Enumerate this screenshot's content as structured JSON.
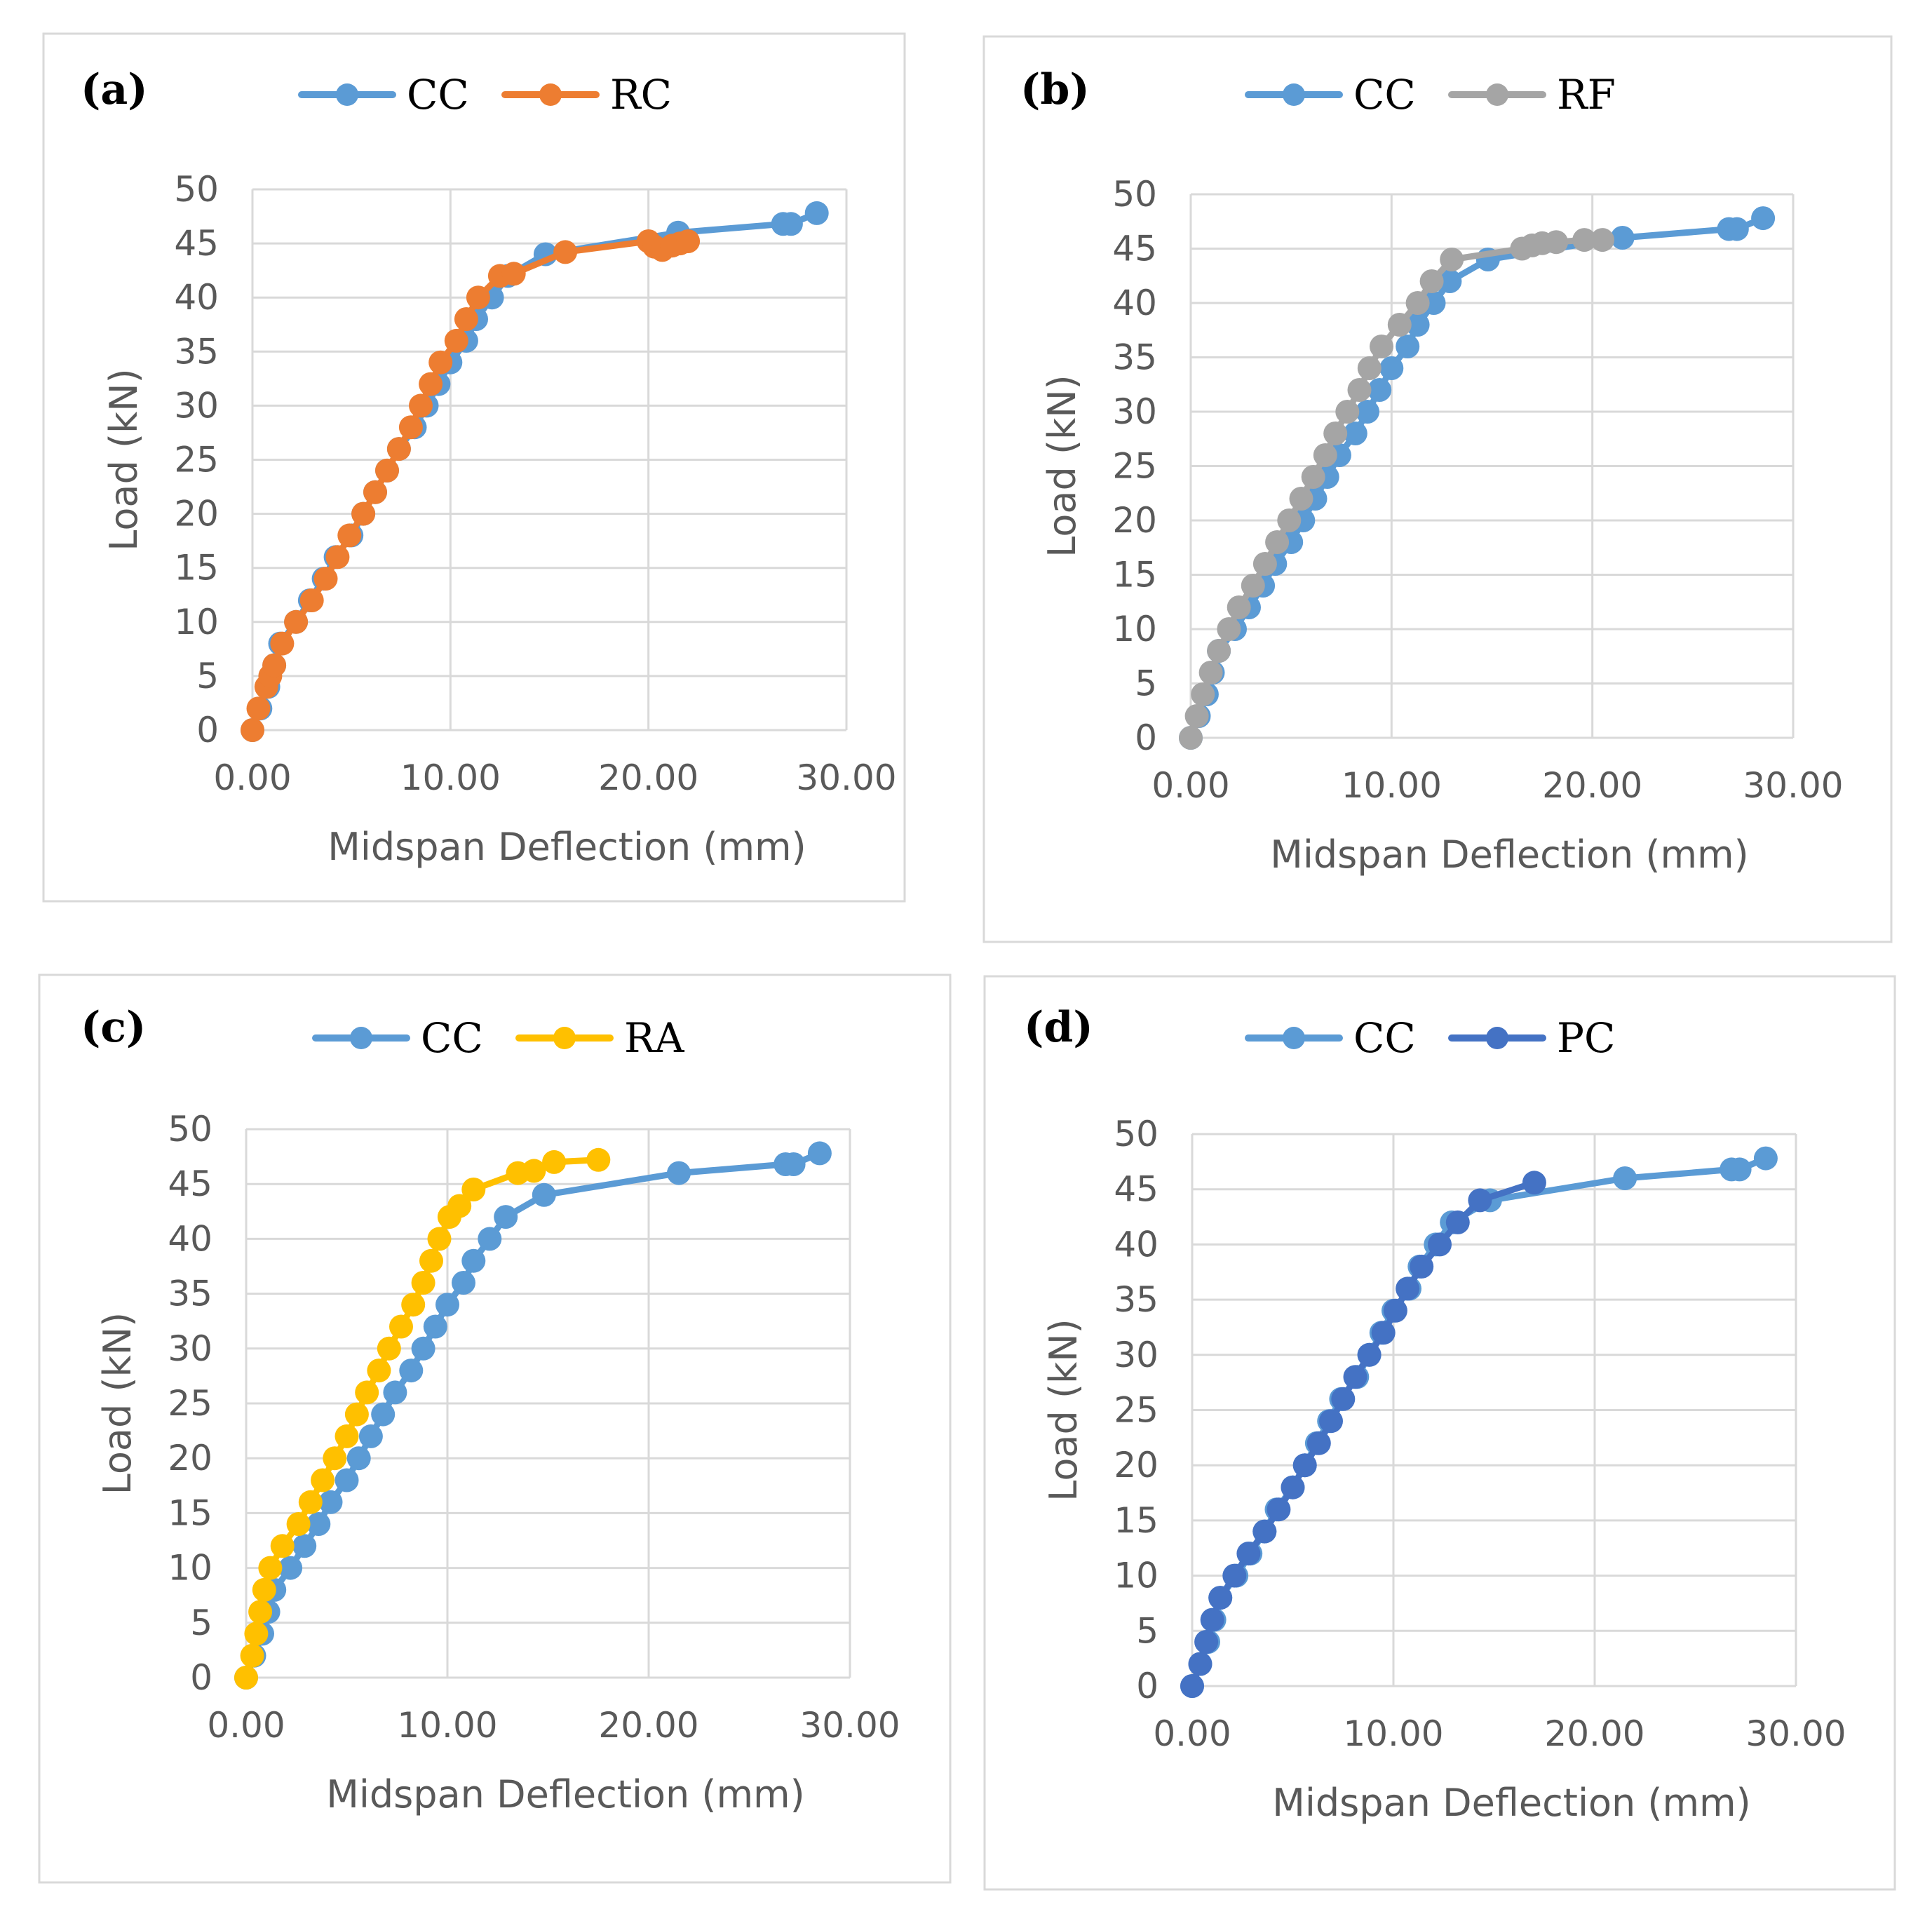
{
  "colors": {
    "CC": "#5b9bd5",
    "RC": "#ed7d31",
    "RF": "#a5a5a5",
    "RA": "#ffc000",
    "PC": "#4472c4",
    "grid": "#d9d9d9",
    "axis_text": "#595959",
    "frame": "#d9d9d9"
  },
  "chart_data": [
    {
      "type": "line",
      "panel_label": "(a)",
      "xlabel": "Midspan Deflection (mm)",
      "ylabel": "Load (kN)",
      "xlim": [
        0,
        30
      ],
      "ylim": [
        0,
        50
      ],
      "xticks": [
        "0.00",
        "10.00",
        "20.00",
        "30.00"
      ],
      "yticks": [
        "0",
        "5",
        "10",
        "15",
        "20",
        "25",
        "30",
        "35",
        "40",
        "45",
        "50"
      ],
      "grid": true,
      "legend": "top",
      "series": [
        {
          "name": "CC",
          "color_key": "CC",
          "points": [
            [
              0,
              0
            ],
            [
              0.4,
              2
            ],
            [
              0.8,
              4
            ],
            [
              1.1,
              6
            ],
            [
              1.4,
              8
            ],
            [
              2.2,
              10
            ],
            [
              2.9,
              12
            ],
            [
              3.6,
              14
            ],
            [
              4.2,
              16
            ],
            [
              5.0,
              18
            ],
            [
              5.6,
              20
            ],
            [
              6.2,
              22
            ],
            [
              6.8,
              24
            ],
            [
              7.4,
              26
            ],
            [
              8.2,
              28
            ],
            [
              8.8,
              30
            ],
            [
              9.4,
              32
            ],
            [
              10.0,
              34
            ],
            [
              10.8,
              36
            ],
            [
              11.3,
              38
            ],
            [
              12.1,
              40
            ],
            [
              12.9,
              42
            ],
            [
              14.8,
              44
            ],
            [
              21.5,
              46
            ],
            [
              26.8,
              46.8
            ],
            [
              27.2,
              46.8
            ],
            [
              28.5,
              47.8
            ]
          ]
        },
        {
          "name": "RC",
          "color_key": "RC",
          "points": [
            [
              0,
              0
            ],
            [
              0.3,
              2
            ],
            [
              0.7,
              4
            ],
            [
              0.9,
              5
            ],
            [
              1.1,
              6
            ],
            [
              1.5,
              8
            ],
            [
              2.2,
              10
            ],
            [
              3.0,
              12
            ],
            [
              3.7,
              14
            ],
            [
              4.3,
              16
            ],
            [
              4.9,
              18
            ],
            [
              5.6,
              20
            ],
            [
              6.2,
              22
            ],
            [
              6.8,
              24
            ],
            [
              7.4,
              26
            ],
            [
              8.0,
              28
            ],
            [
              8.5,
              30
            ],
            [
              9.0,
              32
            ],
            [
              9.5,
              34
            ],
            [
              10.3,
              36
            ],
            [
              10.8,
              38
            ],
            [
              11.4,
              40
            ],
            [
              12.5,
              42
            ],
            [
              13.2,
              42.2
            ],
            [
              15.8,
              44.2
            ],
            [
              20.0,
              45.2
            ],
            [
              20.3,
              44.7
            ],
            [
              20.7,
              44.4
            ],
            [
              21.2,
              44.8
            ],
            [
              21.6,
              45.0
            ],
            [
              22.0,
              45.2
            ]
          ]
        }
      ]
    },
    {
      "type": "line",
      "panel_label": "(b)",
      "xlabel": "Midspan Deflection (mm)",
      "ylabel": "Load (kN)",
      "xlim": [
        0,
        30
      ],
      "ylim": [
        0,
        50
      ],
      "xticks": [
        "0.00",
        "10.00",
        "20.00",
        "30.00"
      ],
      "yticks": [
        "0",
        "5",
        "10",
        "15",
        "20",
        "25",
        "30",
        "35",
        "40",
        "45",
        "50"
      ],
      "grid": true,
      "legend": "top",
      "series": [
        {
          "name": "CC",
          "color_key": "CC",
          "points": [
            [
              0,
              0
            ],
            [
              0.4,
              2
            ],
            [
              0.8,
              4
            ],
            [
              1.1,
              6
            ],
            [
              1.4,
              8
            ],
            [
              2.2,
              10
            ],
            [
              2.9,
              12
            ],
            [
              3.6,
              14
            ],
            [
              4.2,
              16
            ],
            [
              5.0,
              18
            ],
            [
              5.6,
              20
            ],
            [
              6.2,
              22
            ],
            [
              6.8,
              24
            ],
            [
              7.4,
              26
            ],
            [
              8.2,
              28
            ],
            [
              8.8,
              30
            ],
            [
              9.4,
              32
            ],
            [
              10.0,
              34
            ],
            [
              10.8,
              36
            ],
            [
              11.3,
              38
            ],
            [
              12.1,
              40
            ],
            [
              12.9,
              42
            ],
            [
              14.8,
              44
            ],
            [
              21.5,
              46
            ],
            [
              26.8,
              46.8
            ],
            [
              27.2,
              46.8
            ],
            [
              28.5,
              47.8
            ]
          ]
        },
        {
          "name": "RF",
          "color_key": "RF",
          "points": [
            [
              0,
              0
            ],
            [
              0.3,
              2
            ],
            [
              0.6,
              4
            ],
            [
              1.0,
              6
            ],
            [
              1.4,
              8
            ],
            [
              1.9,
              10
            ],
            [
              2.4,
              12
            ],
            [
              3.1,
              14
            ],
            [
              3.7,
              16
            ],
            [
              4.3,
              18
            ],
            [
              4.9,
              20
            ],
            [
              5.5,
              22
            ],
            [
              6.1,
              24
            ],
            [
              6.7,
              26
            ],
            [
              7.2,
              28
            ],
            [
              7.8,
              30
            ],
            [
              8.4,
              32
            ],
            [
              8.9,
              34
            ],
            [
              9.5,
              36
            ],
            [
              10.4,
              38
            ],
            [
              11.3,
              40
            ],
            [
              12.0,
              42
            ],
            [
              13.0,
              44
            ],
            [
              16.5,
              45
            ],
            [
              17.0,
              45.3
            ],
            [
              17.5,
              45.5
            ],
            [
              18.2,
              45.6
            ],
            [
              19.6,
              45.8
            ],
            [
              20.5,
              45.8
            ]
          ]
        }
      ]
    },
    {
      "type": "line",
      "panel_label": "(c)",
      "xlabel": "Midspan Deflection (mm)",
      "ylabel": "Load (kN)",
      "xlim": [
        0,
        30
      ],
      "ylim": [
        0,
        50
      ],
      "xticks": [
        "0.00",
        "10.00",
        "20.00",
        "30.00"
      ],
      "yticks": [
        "0",
        "5",
        "10",
        "15",
        "20",
        "25",
        "30",
        "35",
        "40",
        "45",
        "50"
      ],
      "grid": true,
      "legend": "top",
      "series": [
        {
          "name": "CC",
          "color_key": "CC",
          "points": [
            [
              0,
              0
            ],
            [
              0.4,
              2
            ],
            [
              0.8,
              4
            ],
            [
              1.1,
              6
            ],
            [
              1.4,
              8
            ],
            [
              2.2,
              10
            ],
            [
              2.9,
              12
            ],
            [
              3.6,
              14
            ],
            [
              4.2,
              16
            ],
            [
              5.0,
              18
            ],
            [
              5.6,
              20
            ],
            [
              6.2,
              22
            ],
            [
              6.8,
              24
            ],
            [
              7.4,
              26
            ],
            [
              8.2,
              28
            ],
            [
              8.8,
              30
            ],
            [
              9.4,
              32
            ],
            [
              10.0,
              34
            ],
            [
              10.8,
              36
            ],
            [
              11.3,
              38
            ],
            [
              12.1,
              40
            ],
            [
              12.9,
              42
            ],
            [
              14.8,
              44
            ],
            [
              21.5,
              46
            ],
            [
              26.8,
              46.8
            ],
            [
              27.2,
              46.8
            ],
            [
              28.5,
              47.8
            ]
          ]
        },
        {
          "name": "RA",
          "color_key": "RA",
          "points": [
            [
              0,
              0
            ],
            [
              0.3,
              2
            ],
            [
              0.5,
              4
            ],
            [
              0.7,
              6
            ],
            [
              0.9,
              8
            ],
            [
              1.2,
              10
            ],
            [
              1.8,
              12
            ],
            [
              2.6,
              14
            ],
            [
              3.2,
              16
            ],
            [
              3.8,
              18
            ],
            [
              4.4,
              20
            ],
            [
              5.0,
              22
            ],
            [
              5.5,
              24
            ],
            [
              6.0,
              26
            ],
            [
              6.6,
              28
            ],
            [
              7.1,
              30
            ],
            [
              7.7,
              32
            ],
            [
              8.3,
              34
            ],
            [
              8.8,
              36
            ],
            [
              9.2,
              38
            ],
            [
              9.6,
              40
            ],
            [
              10.1,
              42
            ],
            [
              10.6,
              43
            ],
            [
              11.3,
              44.5
            ],
            [
              13.5,
              46
            ],
            [
              14.3,
              46.2
            ],
            [
              15.3,
              47.0
            ],
            [
              17.5,
              47.2
            ]
          ]
        }
      ]
    },
    {
      "type": "line",
      "panel_label": "(d)",
      "xlabel": "Midspan Deflection (mm)",
      "ylabel": "Load (kN)",
      "xlim": [
        0,
        30
      ],
      "ylim": [
        0,
        50
      ],
      "xticks": [
        "0.00",
        "10.00",
        "20.00",
        "30.00"
      ],
      "yticks": [
        "0",
        "5",
        "10",
        "15",
        "20",
        "25",
        "30",
        "35",
        "40",
        "45",
        "50"
      ],
      "grid": true,
      "legend": "top",
      "series": [
        {
          "name": "CC",
          "color_key": "CC",
          "points": [
            [
              0,
              0
            ],
            [
              0.4,
              2
            ],
            [
              0.8,
              4
            ],
            [
              1.1,
              6
            ],
            [
              1.4,
              8
            ],
            [
              2.2,
              10
            ],
            [
              2.9,
              12
            ],
            [
              3.6,
              14
            ],
            [
              4.2,
              16
            ],
            [
              5.0,
              18
            ],
            [
              5.6,
              20
            ],
            [
              6.2,
              22
            ],
            [
              6.8,
              24
            ],
            [
              7.4,
              26
            ],
            [
              8.2,
              28
            ],
            [
              8.8,
              30
            ],
            [
              9.4,
              32
            ],
            [
              10.0,
              34
            ],
            [
              10.8,
              36
            ],
            [
              11.3,
              38
            ],
            [
              12.1,
              40
            ],
            [
              12.9,
              42
            ],
            [
              14.8,
              44
            ],
            [
              21.5,
              46
            ],
            [
              26.8,
              46.8
            ],
            [
              27.2,
              46.8
            ],
            [
              28.5,
              47.8
            ]
          ]
        },
        {
          "name": "PC",
          "color_key": "PC",
          "points": [
            [
              0,
              0
            ],
            [
              0.4,
              2
            ],
            [
              0.7,
              4
            ],
            [
              1.0,
              6
            ],
            [
              1.4,
              8
            ],
            [
              2.1,
              10
            ],
            [
              2.8,
              12
            ],
            [
              3.6,
              14
            ],
            [
              4.3,
              16
            ],
            [
              5.0,
              18
            ],
            [
              5.6,
              20
            ],
            [
              6.3,
              22
            ],
            [
              6.9,
              24
            ],
            [
              7.5,
              26
            ],
            [
              8.1,
              28
            ],
            [
              8.8,
              30
            ],
            [
              9.5,
              32
            ],
            [
              10.1,
              34
            ],
            [
              10.7,
              36
            ],
            [
              11.4,
              38
            ],
            [
              12.3,
              40
            ],
            [
              13.2,
              42
            ],
            [
              14.3,
              44
            ],
            [
              17.0,
              45.6
            ]
          ]
        }
      ]
    }
  ]
}
